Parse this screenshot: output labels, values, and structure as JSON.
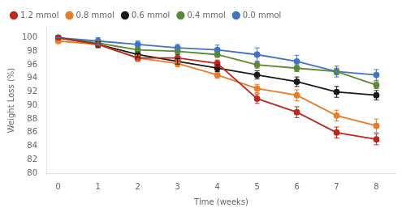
{
  "chart_data": {
    "type": "line",
    "x": [
      0,
      1,
      2,
      3,
      4,
      5,
      6,
      7,
      8
    ],
    "series": [
      {
        "name": "1.2 mmol",
        "color": "#c0281c",
        "marker": "o",
        "values": [
          100,
          99.0,
          97.0,
          97.0,
          96.2,
          91.0,
          89.0,
          86.0,
          85.0
        ],
        "yerr": [
          0.0,
          0.5,
          0.5,
          0.5,
          0.5,
          0.7,
          0.8,
          0.8,
          0.8
        ]
      },
      {
        "name": "0.8 mmol",
        "color": "#e87c2a",
        "marker": "o",
        "values": [
          99.5,
          99.0,
          97.0,
          96.2,
          94.5,
          92.5,
          91.5,
          88.5,
          87.0
        ],
        "yerr": [
          0.0,
          0.4,
          0.4,
          0.5,
          0.5,
          0.6,
          0.8,
          0.8,
          1.0
        ]
      },
      {
        "name": "0.6 mmol",
        "color": "#1a1a1a",
        "marker": "o",
        "values": [
          100,
          99.0,
          97.5,
          96.5,
          95.5,
          94.5,
          93.5,
          92.0,
          91.5
        ],
        "yerr": [
          0.0,
          0.4,
          0.4,
          0.4,
          0.5,
          0.6,
          0.7,
          0.8,
          0.7
        ]
      },
      {
        "name": "0.4 mmol",
        "color": "#5a8a34",
        "marker": "o",
        "values": [
          100,
          99.2,
          98.2,
          98.0,
          97.5,
          96.0,
          95.5,
          95.0,
          93.0
        ],
        "yerr": [
          0.0,
          0.3,
          0.3,
          0.4,
          0.4,
          0.5,
          0.5,
          0.5,
          0.5
        ]
      },
      {
        "name": "0.0 mmol",
        "color": "#4472c4",
        "marker": "o",
        "values": [
          100,
          99.5,
          99.0,
          98.5,
          98.2,
          97.5,
          96.5,
          95.0,
          94.5
        ],
        "yerr": [
          0.0,
          0.5,
          0.5,
          0.5,
          0.7,
          1.0,
          0.9,
          0.8,
          0.8
        ]
      }
    ],
    "xlabel": "Time (weeks)",
    "ylabel": "Weight Loss (%)",
    "xlim": [
      -0.3,
      8.5
    ],
    "ylim": [
      80,
      101.5
    ],
    "xticks": [
      0,
      1,
      2,
      3,
      4,
      5,
      6,
      7,
      8
    ],
    "yticks": [
      80,
      82,
      84,
      86,
      88,
      90,
      92,
      94,
      96,
      98,
      100
    ],
    "grid": false,
    "legend": "top"
  }
}
